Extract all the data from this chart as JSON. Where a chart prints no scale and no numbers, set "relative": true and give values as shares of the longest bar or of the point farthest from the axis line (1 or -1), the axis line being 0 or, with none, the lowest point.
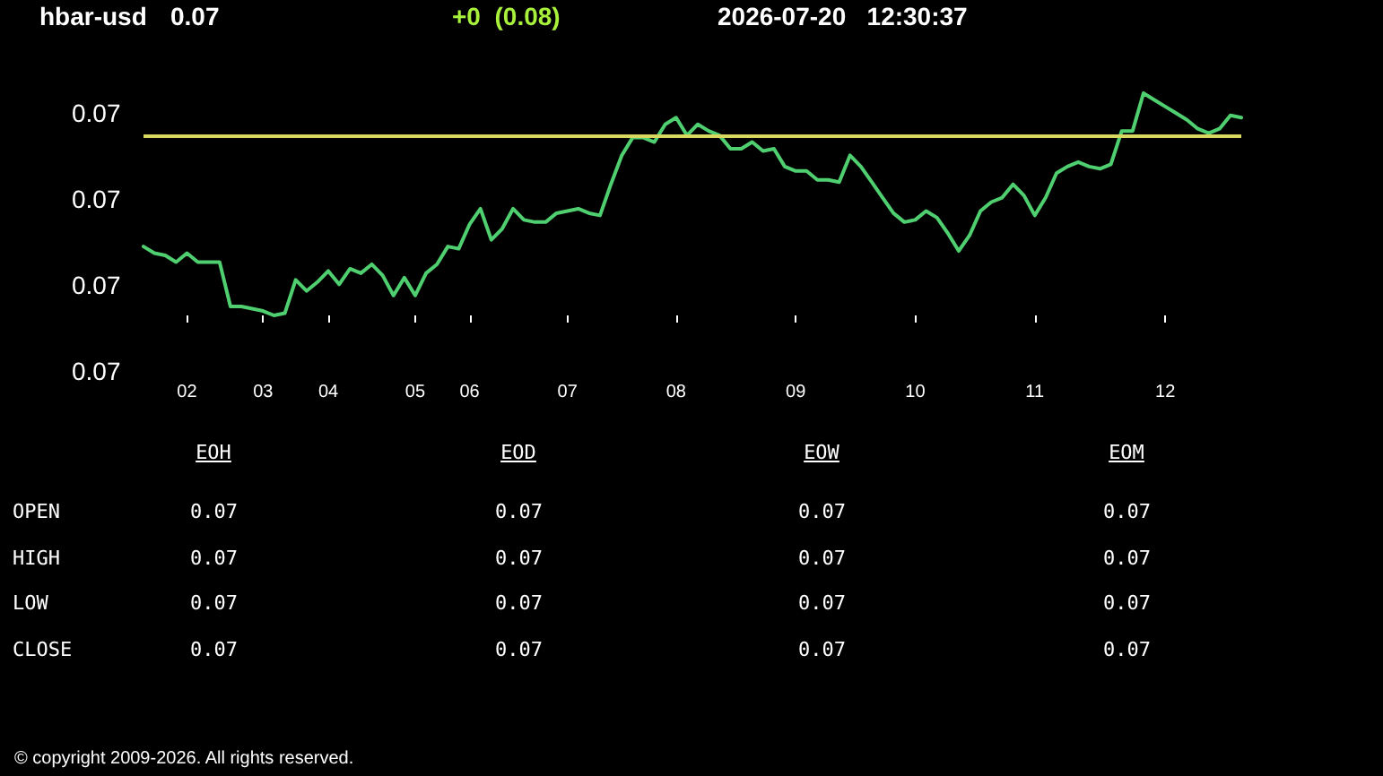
{
  "chart_data": [
    {
      "type": "line",
      "title": "hbar-usd",
      "relative": true,
      "annotations": [
        "0.07",
        "+0  (0.08)",
        "2026-07-20   12:30:37",
        "© copyright 2009-2026. All rights reserved.",
        "0.07",
        "0.07",
        "0.07",
        "0.07"
      ],
      "categories": [
        null,
        null,
        null,
        null,
        "02",
        null,
        null,
        null,
        null,
        null,
        null,
        "03",
        null,
        null,
        null,
        null,
        null,
        "04",
        null,
        null,
        null,
        null,
        null,
        null,
        null,
        "05",
        null,
        null,
        null,
        null,
        "06",
        null,
        null,
        null,
        null,
        null,
        null,
        null,
        null,
        "07",
        null,
        null,
        null,
        null,
        null,
        null,
        null,
        null,
        null,
        "08",
        null,
        null,
        null,
        null,
        null,
        null,
        null,
        null,
        null,
        null,
        "09",
        null,
        null,
        null,
        null,
        null,
        null,
        null,
        null,
        null,
        null,
        "10",
        null,
        null,
        null,
        null,
        null,
        null,
        null,
        null,
        null,
        null,
        "11",
        null,
        null,
        null,
        null,
        null,
        null,
        null,
        null,
        null,
        null,
        null,
        "12",
        null,
        null,
        null,
        null,
        null,
        null,
        null
      ],
      "series": [
        {
          "color": "#4fcf6f",
          "values": [
            0.31,
            0.28,
            0.27,
            0.24,
            0.28,
            0.24,
            0.24,
            0.24,
            0.04,
            0.04,
            0.03,
            0.02,
            0.0,
            0.01,
            0.16,
            0.11,
            0.15,
            0.2,
            0.14,
            0.21,
            0.19,
            0.23,
            0.18,
            0.09,
            0.17,
            0.09,
            0.19,
            0.23,
            0.31,
            0.3,
            0.41,
            0.48,
            0.34,
            0.39,
            0.48,
            0.43,
            0.42,
            0.42,
            0.46,
            0.47,
            0.48,
            0.46,
            0.45,
            0.59,
            0.72,
            0.8,
            0.8,
            0.78,
            0.86,
            0.89,
            0.81,
            0.86,
            0.83,
            0.81,
            0.75,
            0.75,
            0.78,
            0.74,
            0.75,
            0.67,
            0.65,
            0.65,
            0.61,
            0.61,
            0.6,
            0.72,
            0.67,
            0.6,
            0.53,
            0.46,
            0.42,
            0.43,
            0.47,
            0.44,
            0.37,
            0.29,
            0.36,
            0.47,
            0.51,
            0.53,
            0.59,
            0.54,
            0.45,
            0.53,
            0.64,
            0.67,
            0.69,
            0.67,
            0.66,
            0.68,
            0.83,
            0.83,
            1.0,
            0.97,
            0.94,
            0.91,
            0.88,
            0.84,
            0.82,
            0.84,
            0.9,
            0.89
          ]
        }
      ],
      "ref_lines": [
        {
          "axis": "y",
          "value": 0.81,
          "color": "#d8d860"
        }
      ],
      "grid": false,
      "marker": "none",
      "line_style": "solid"
    },
    {
      "type": "other",
      "categories": [
        "EOH",
        "EOD",
        "EOW",
        "EOM"
      ],
      "y_categories": [
        "OPEN",
        "HIGH",
        "LOW",
        "CLOSE"
      ],
      "cell_labels": [
        [
          "0.07",
          "0.07",
          "0.07",
          "0.07"
        ],
        [
          "0.07",
          "0.07",
          "0.07",
          "0.07"
        ],
        [
          "0.07",
          "0.07",
          "0.07",
          "0.07"
        ],
        [
          "0.07",
          "0.07",
          "0.07",
          "0.07"
        ]
      ]
    }
  ]
}
